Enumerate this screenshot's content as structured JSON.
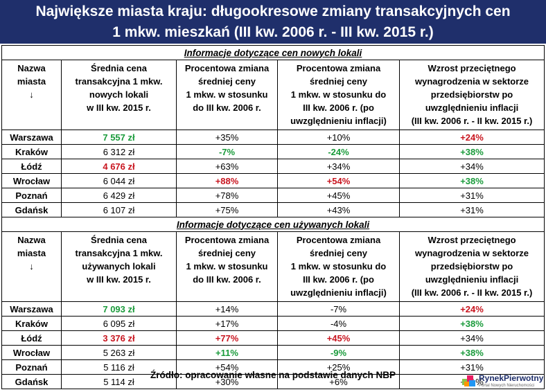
{
  "title": {
    "line1": "Największe miasta kraju: długookresowe zmiany transakcyjnych cen",
    "line2": "1 mkw. mieszkań (III kw. 2006 r. - III kw. 2015 r.)"
  },
  "headers": {
    "city_l1": "Nazwa",
    "city_l2": "miasta",
    "city_l3": "↓",
    "nowe_price": [
      "Średnia cena",
      "transakcyjna 1 mkw.",
      "nowych lokali",
      "w III kw. 2015 r."
    ],
    "uzywane_price": [
      "Średnia cena",
      "transakcyjna 1 mkw.",
      "używanych lokali",
      "w III kw. 2015 r."
    ],
    "pct_change": [
      "Procentowa zmiana",
      "średniej ceny",
      "1 mkw. w stosunku",
      "do III kw. 2006 r."
    ],
    "pct_change_infl": [
      "Procentowa zmiana",
      "średniej ceny",
      "1 mkw. w stosunku do",
      "III kw. 2006 r. (po",
      "uwzględnieniu inflacji)"
    ],
    "wage": [
      "Wzrost przeciętnego",
      "wynagrodzenia w sektorze",
      "przedsiębiorstw po",
      "uwzględnieniu inflacji",
      "(III kw. 2006 r. - II kw. 2015 r.)"
    ]
  },
  "sections": [
    {
      "title": "Informacje dotyczące cen nowych lokali",
      "price_header": "nowe_price",
      "rows": [
        {
          "city": "Warszawa",
          "price": "7 557 zł",
          "change": "+35%",
          "change_infl": "+10%",
          "wage": "+24%",
          "hl": {
            "price": "green",
            "wage": "red"
          }
        },
        {
          "city": "Kraków",
          "price": "6 312 zł",
          "change": "-7%",
          "change_infl": "-24%",
          "wage": "+38%",
          "hl": {
            "change": "green",
            "change_infl": "green",
            "wage": "green"
          }
        },
        {
          "city": "Łódź",
          "price": "4 676 zł",
          "change": "+63%",
          "change_infl": "+34%",
          "wage": "+34%",
          "hl": {
            "price": "red"
          }
        },
        {
          "city": "Wrocław",
          "price": "6 044 zł",
          "change": "+88%",
          "change_infl": "+54%",
          "wage": "+38%",
          "hl": {
            "change": "red",
            "change_infl": "red",
            "wage": "green"
          }
        },
        {
          "city": "Poznań",
          "price": "6 429 zł",
          "change": "+78%",
          "change_infl": "+45%",
          "wage": "+31%",
          "hl": {}
        },
        {
          "city": "Gdańsk",
          "price": "6 107 zł",
          "change": "+75%",
          "change_infl": "+43%",
          "wage": "+31%",
          "hl": {}
        }
      ]
    },
    {
      "title": "Informacje dotyczące cen używanych lokali",
      "price_header": "uzywane_price",
      "rows": [
        {
          "city": "Warszawa",
          "price": "7 093 zł",
          "change": "+14%",
          "change_infl": "-7%",
          "wage": "+24%",
          "hl": {
            "price": "green",
            "wage": "red"
          }
        },
        {
          "city": "Kraków",
          "price": "6 095 zł",
          "change": "+17%",
          "change_infl": "-4%",
          "wage": "+38%",
          "hl": {
            "wage": "green"
          }
        },
        {
          "city": "Łódź",
          "price": "3 376 zł",
          "change": "+77%",
          "change_infl": "+45%",
          "wage": "+34%",
          "hl": {
            "price": "red",
            "change": "red",
            "change_infl": "red"
          }
        },
        {
          "city": "Wrocław",
          "price": "5 263 zł",
          "change": "+11%",
          "change_infl": "-9%",
          "wage": "+38%",
          "hl": {
            "change": "green",
            "change_infl": "green",
            "wage": "green"
          }
        },
        {
          "city": "Poznań",
          "price": "5 116 zł",
          "change": "+54%",
          "change_infl": "+25%",
          "wage": "+31%",
          "hl": {}
        },
        {
          "city": "Gdańsk",
          "price": "5 114 zł",
          "change": "+30%",
          "change_infl": "+6%",
          "wage": "+31%",
          "hl": {}
        }
      ]
    }
  ],
  "source": "Źródło: opracowanie własne na podstawie danych NBP",
  "logo": {
    "name": "RynekPierwotny",
    "tagline": "Portal Nowych Nieruchomości",
    "icon": "house-logo-icon"
  },
  "colors": {
    "title_bg": "#1f2f6b",
    "green": "#1a9b3b",
    "red": "#c8141e"
  }
}
